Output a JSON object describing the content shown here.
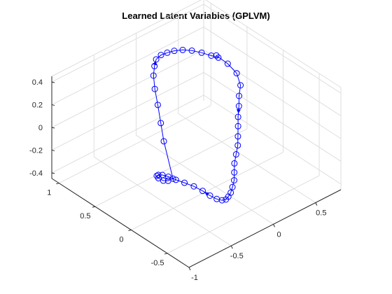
{
  "chart_data": {
    "type": "line",
    "projection": "3d",
    "title": "Learned Latent Variables (GPLVM)",
    "markers": "open circle",
    "arrows": "blue arrowheads marking trajectory direction",
    "grid": true,
    "colors": {
      "series": "#0000ff",
      "axis": "#262626",
      "grid": "#dedede",
      "background": "#ffffff"
    },
    "x_axis": {
      "range": [
        -1,
        0.8
      ],
      "ticks": [
        -1,
        -0.5,
        0,
        0.5
      ],
      "tick_labels": [
        "-1",
        "-0.5",
        "0",
        "0.5"
      ]
    },
    "y_axis": {
      "range": [
        -0.8,
        1.1
      ],
      "ticks": [
        -0.5,
        0,
        0.5,
        1
      ],
      "tick_labels": [
        "-0.5",
        "0",
        "0.5",
        "1"
      ]
    },
    "z_axis": {
      "range": [
        -0.45,
        0.45
      ],
      "ticks": [
        -0.4,
        -0.2,
        0,
        0.2,
        0.4
      ],
      "tick_labels": [
        "-0.4",
        "-0.2",
        "0",
        "0.2",
        "0.4"
      ]
    },
    "series": [
      {
        "points": [
          [
            0.65,
            0.75,
            0.15
          ],
          [
            0.7,
            0.65,
            0.1
          ],
          [
            0.72,
            0.55,
            0.05
          ],
          [
            0.68,
            0.45,
            0.0
          ],
          [
            0.62,
            0.4,
            -0.05
          ],
          [
            0.55,
            0.32,
            -0.08
          ],
          [
            0.48,
            0.25,
            -0.12
          ],
          [
            0.42,
            0.18,
            -0.15
          ],
          [
            0.35,
            0.1,
            -0.18
          ],
          [
            0.28,
            0.02,
            -0.2
          ],
          [
            0.2,
            -0.05,
            -0.22
          ],
          [
            0.12,
            -0.12,
            -0.24
          ],
          [
            0.05,
            -0.2,
            -0.26
          ],
          [
            -0.02,
            -0.28,
            -0.27
          ],
          [
            -0.1,
            -0.35,
            -0.27
          ],
          [
            -0.18,
            -0.42,
            -0.26
          ],
          [
            -0.26,
            -0.48,
            -0.24
          ],
          [
            -0.34,
            -0.54,
            -0.21
          ],
          [
            -0.42,
            -0.58,
            -0.17
          ],
          [
            -0.5,
            -0.6,
            -0.12
          ],
          [
            -0.58,
            -0.6,
            -0.06
          ],
          [
            -0.65,
            -0.58,
            0.0
          ],
          [
            -0.72,
            -0.54,
            0.05
          ],
          [
            -0.78,
            -0.48,
            0.08
          ],
          [
            -0.83,
            -0.42,
            0.1
          ],
          [
            -0.86,
            -0.35,
            0.11
          ],
          [
            -0.87,
            -0.28,
            0.1
          ],
          [
            -0.85,
            -0.2,
            0.06
          ],
          [
            -0.8,
            -0.12,
            0.0
          ],
          [
            -0.72,
            -0.05,
            -0.08
          ],
          [
            -0.62,
            0.0,
            -0.16
          ],
          [
            -0.52,
            0.05,
            -0.22
          ],
          [
            -0.42,
            0.1,
            -0.26
          ],
          [
            -0.4,
            0.25,
            0.0
          ],
          [
            -0.35,
            0.35,
            0.1
          ],
          [
            -0.3,
            0.45,
            0.2
          ],
          [
            -0.25,
            0.55,
            0.28
          ],
          [
            -0.18,
            0.65,
            0.33
          ],
          [
            -0.1,
            0.73,
            0.35
          ],
          [
            -0.02,
            0.8,
            0.35
          ],
          [
            0.08,
            0.85,
            0.33
          ],
          [
            0.18,
            0.88,
            0.3
          ],
          [
            0.28,
            0.9,
            0.27
          ],
          [
            0.38,
            0.9,
            0.24
          ],
          [
            0.48,
            0.89,
            0.2
          ],
          [
            0.57,
            0.86,
            0.16
          ],
          [
            0.65,
            0.82,
            0.12
          ],
          [
            0.7,
            0.78,
            0.1
          ]
        ]
      }
    ]
  }
}
